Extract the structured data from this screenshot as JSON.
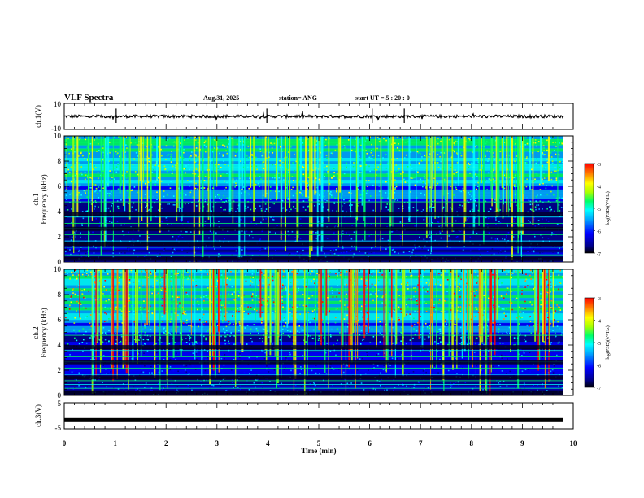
{
  "header": {
    "title": "VLF Spectra",
    "date": "Aug.31, 2025",
    "station": "station= ANG",
    "start": "start  UT =   5 : 20 : 0"
  },
  "chart_data": [
    {
      "type": "line",
      "name": "ch1-waveform",
      "ylabel": "ch.1(V)",
      "ylim": [
        -10,
        10
      ],
      "ytick_labels": [
        "10",
        "-10"
      ],
      "xlim": [
        0,
        10
      ],
      "baseline": 0
    },
    {
      "type": "heatmap",
      "name": "ch1-spectrogram",
      "ylabel_channel": "ch.1",
      "ylabel": "Frequency  (kHz)",
      "ylim": [
        0,
        10
      ],
      "ytick_labels": [
        "0",
        "2",
        "4",
        "6",
        "8",
        "10"
      ],
      "xlim": [
        0,
        10
      ],
      "colorbar": {
        "label": "log(PSD)(V²/Hz)",
        "range": [
          -7,
          -3
        ],
        "tick_labels": [
          "-3",
          "-4",
          "-5",
          "-6",
          "-7"
        ]
      }
    },
    {
      "type": "heatmap",
      "name": "ch2-spectrogram",
      "ylabel_channel": "ch.2",
      "ylabel": "Frequency  (kHz)",
      "ylim": [
        0,
        10
      ],
      "ytick_labels": [
        "0",
        "2",
        "4",
        "6",
        "8",
        "10"
      ],
      "xlim": [
        0,
        10
      ],
      "colorbar": {
        "label": "log(PSD)(V²/Hz)",
        "range": [
          -7,
          -3
        ],
        "tick_labels": [
          "-3",
          "-4",
          "-5",
          "-6",
          "-7"
        ]
      }
    },
    {
      "type": "line",
      "name": "ch3-waveform",
      "ylabel": "ch.3(V)",
      "ylim": [
        -5,
        5
      ],
      "ytick_labels": [
        "5",
        "-5"
      ],
      "xlim": [
        0,
        10
      ],
      "baseline": -1.5
    }
  ],
  "xaxis": {
    "label": "Time  (min)",
    "range": [
      0,
      10
    ],
    "tick_labels": [
      "0",
      "1",
      "2",
      "3",
      "4",
      "5",
      "6",
      "7",
      "8",
      "9",
      "10"
    ]
  },
  "colors": {
    "colormap": [
      "#00008b",
      "#0000ff",
      "#00aaff",
      "#00ffff",
      "#00ff66",
      "#aaff00",
      "#ffff00",
      "#ff8800",
      "#ff0000"
    ],
    "background_dark": "#000022",
    "text": "#000000"
  }
}
